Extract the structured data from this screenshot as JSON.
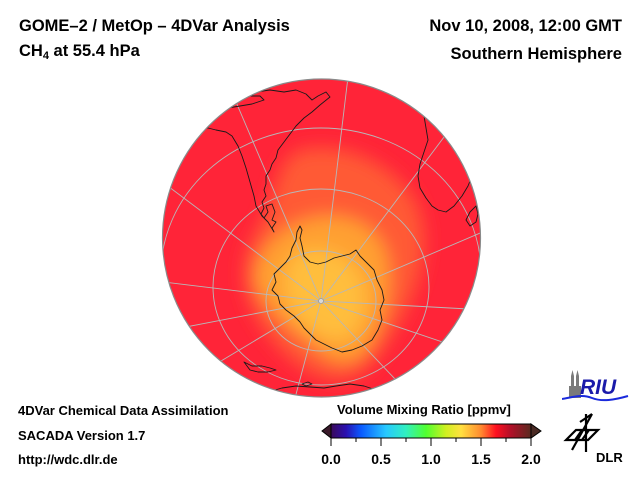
{
  "header": {
    "title": "GOME–2 / MetOp – 4DVar Analysis",
    "species_main": "CH",
    "species_sub": "4",
    "species_rest": " at 55.4 hPa",
    "datetime": "Nov 10, 2008, 12:00 GMT",
    "region": "Southern Hemisphere"
  },
  "footer": {
    "line1": "4DVar Chemical Data Assimilation",
    "line2": "SACADA Version 1.7",
    "line3": "http://wdc.dlr.de"
  },
  "colorbar": {
    "title": "Volume Mixing Ratio [ppmv]",
    "min": 0.0,
    "max": 2.0,
    "tick_labels": [
      "0.0",
      "0.5",
      "1.0",
      "1.5",
      "2.0"
    ],
    "tick_values": [
      0.0,
      0.5,
      1.0,
      1.5,
      2.0
    ],
    "minor_tick_values": [
      0.25,
      0.75,
      1.25,
      1.75
    ],
    "color_stops": [
      {
        "v": 0.0,
        "c": "#3a0a5a"
      },
      {
        "v": 0.15,
        "c": "#2a10b0"
      },
      {
        "v": 0.3,
        "c": "#0a5aff"
      },
      {
        "v": 0.55,
        "c": "#27c8ff"
      },
      {
        "v": 0.75,
        "c": "#30f0c0"
      },
      {
        "v": 0.95,
        "c": "#50ff30"
      },
      {
        "v": 1.15,
        "c": "#d0f020"
      },
      {
        "v": 1.3,
        "c": "#ffe040"
      },
      {
        "v": 1.5,
        "c": "#ff8a30"
      },
      {
        "v": 1.65,
        "c": "#ff1020"
      },
      {
        "v": 1.8,
        "c": "#b01028"
      },
      {
        "v": 2.0,
        "c": "#5a2a20"
      }
    ],
    "under_color": "#3a1a2a",
    "over_color": "#4a2a24"
  },
  "map": {
    "projection": "orthographic, south polar view",
    "background_value_ppmv": 1.68,
    "polar_minimum_value_ppmv": 1.45,
    "ring_value_ppmv": 1.55,
    "colors": {
      "background": "#ff2438",
      "ring": "#ff5a36",
      "core": "#ffa030",
      "center": "#ffbe3c",
      "grid": "#b8b8b8",
      "coast": "#1a1a1a",
      "edge": "#8a8a8a"
    }
  },
  "logos": {
    "riu": "RIU",
    "dlr": "DLR",
    "riu_color": "#1a1aaa",
    "riu_wave_color": "#1a2adc"
  }
}
